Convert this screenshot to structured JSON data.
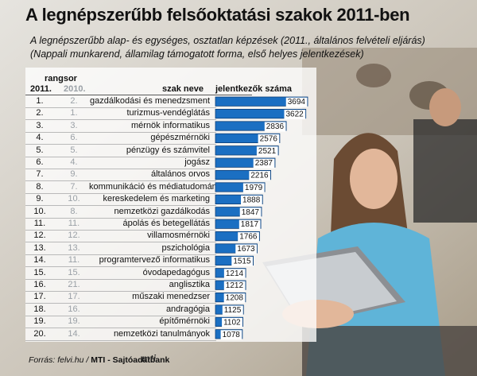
{
  "title": "A legnépszerűbb felsőoktatási szakok 2011-ben",
  "subtitle_line1": "A legnépszerűbb alap- és egységes, osztatlan képzések (2011., általános felvételi eljárás)",
  "subtitle_line2": "(Nappali munkarend, államilag támogatott forma, első helyes jelentkezések)",
  "headers": {
    "rank_group": "rangsor",
    "rank_2011": "2011.",
    "rank_2010": "2010.",
    "name": "szak neve",
    "value": "jelentkezők száma"
  },
  "source_label": "Forrás:",
  "source_text": "felvi.hu /",
  "source_org": "MTI - Sajtóadatbank",
  "logo_text": "mti",
  "colors": {
    "bar_fill": "#1b6fc2",
    "bar_dark": "#0d3f78"
  },
  "chart_data": {
    "type": "bar",
    "orientation": "horizontal",
    "title": "A legnépszerűbb felsőoktatási szakok 2011-ben",
    "rank_2011": [
      "1.",
      "2.",
      "3.",
      "4.",
      "5.",
      "6.",
      "7.",
      "8.",
      "9.",
      "10.",
      "11.",
      "12.",
      "13.",
      "14.",
      "15.",
      "16.",
      "17.",
      "18.",
      "19.",
      "20."
    ],
    "rank_2010": [
      "2.",
      "1.",
      "3.",
      "6.",
      "5.",
      "4.",
      "9.",
      "7.",
      "10.",
      "8.",
      "11.",
      "12.",
      "13.",
      "11.",
      "15.",
      "21.",
      "17.",
      "16.",
      "19.",
      "14."
    ],
    "categories": [
      "gazdálkodási és menedzsment",
      "turizmus-vendéglátás",
      "mérnök informatikus",
      "gépészmérnöki",
      "pénzügy és számvitel",
      "jogász",
      "általános orvos",
      "kommunikáció és médiatudomány",
      "kereskedelem és marketing",
      "nemzetközi gazdálkodás",
      "ápolás és betegellátás",
      "villamosmérnöki",
      "pszichológia",
      "programtervező informatikus",
      "óvodapedagógus",
      "anglisztika",
      "műszaki menedzser",
      "andragógia",
      "építőmérnöki",
      "nemzetközi tanulmányok"
    ],
    "values": [
      3694,
      3622,
      2836,
      2576,
      2521,
      2387,
      2216,
      1979,
      1888,
      1847,
      1817,
      1766,
      1673,
      1515,
      1214,
      1212,
      1208,
      1125,
      1102,
      1078
    ],
    "xlim": [
      0,
      3694
    ]
  }
}
